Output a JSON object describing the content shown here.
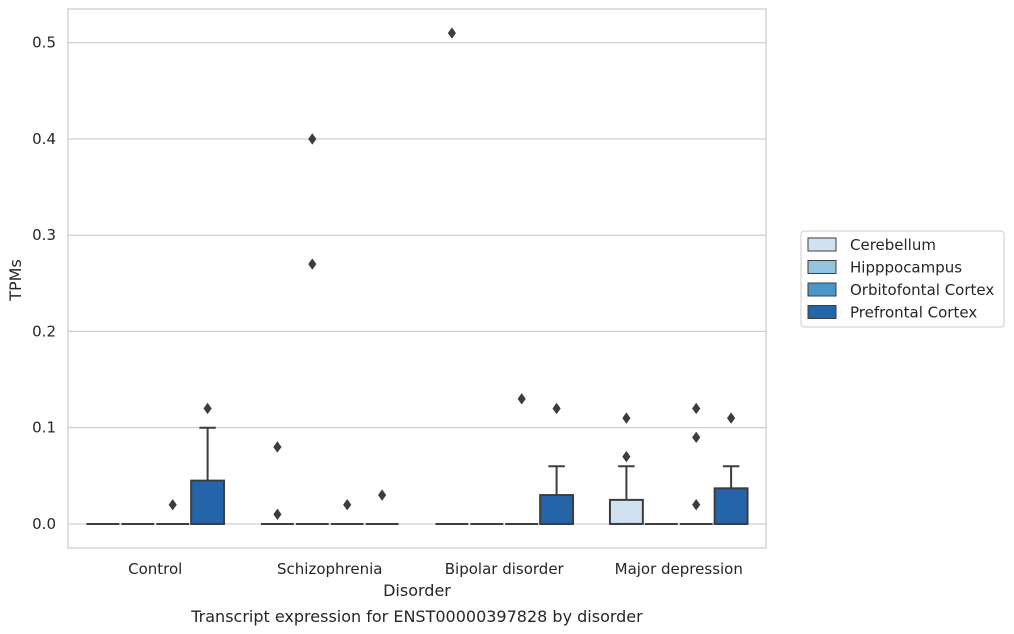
{
  "chart_data": {
    "type": "box",
    "title": "",
    "caption": "Transcript expression for ENST00000397828 by disorder",
    "xlabel": "Disorder",
    "ylabel": "TPMs",
    "categories": [
      "Control",
      "Schizophrenia",
      "Bipolar disorder",
      "Major depression"
    ],
    "ylim": [
      -0.025,
      0.535
    ],
    "yticks": [
      "0.0",
      "0.1",
      "0.2",
      "0.3",
      "0.4",
      "0.5"
    ],
    "ytick_values": [
      0.0,
      0.1,
      0.2,
      0.3,
      0.4,
      0.5
    ],
    "grid": true,
    "legend_placement": "right",
    "series": [
      {
        "name": "Cerebellum",
        "color": "#d0e1f2",
        "boxes": [
          {
            "q1": 0,
            "median": 0,
            "q3": 0,
            "whisker_low": 0,
            "whisker_high": 0,
            "outliers": []
          },
          {
            "q1": 0,
            "median": 0,
            "q3": 0,
            "whisker_low": 0,
            "whisker_high": 0,
            "outliers": [
              0.08,
              0.01
            ]
          },
          {
            "q1": 0,
            "median": 0,
            "q3": 0,
            "whisker_low": 0,
            "whisker_high": 0,
            "outliers": [
              0.51
            ]
          },
          {
            "q1": 0,
            "median": 0,
            "q3": 0.025,
            "whisker_low": 0,
            "whisker_high": 0.06,
            "outliers": [
              0.11,
              0.07
            ]
          }
        ]
      },
      {
        "name": "Hipppocampus",
        "color": "#94c4df",
        "boxes": [
          {
            "q1": 0,
            "median": 0,
            "q3": 0,
            "whisker_low": 0,
            "whisker_high": 0,
            "outliers": []
          },
          {
            "q1": 0,
            "median": 0,
            "q3": 0,
            "whisker_low": 0,
            "whisker_high": 0,
            "outliers": [
              0.4,
              0.27
            ]
          },
          {
            "q1": 0,
            "median": 0,
            "q3": 0,
            "whisker_low": 0,
            "whisker_high": 0,
            "outliers": []
          },
          {
            "q1": 0,
            "median": 0,
            "q3": 0,
            "whisker_low": 0,
            "whisker_high": 0,
            "outliers": []
          }
        ]
      },
      {
        "name": "Orbitofontal Cortex",
        "color": "#4a98c9",
        "boxes": [
          {
            "q1": 0,
            "median": 0,
            "q3": 0,
            "whisker_low": 0,
            "whisker_high": 0,
            "outliers": [
              0.02
            ]
          },
          {
            "q1": 0,
            "median": 0,
            "q3": 0,
            "whisker_low": 0,
            "whisker_high": 0,
            "outliers": [
              0.02
            ]
          },
          {
            "q1": 0,
            "median": 0,
            "q3": 0,
            "whisker_low": 0,
            "whisker_high": 0,
            "outliers": [
              0.13
            ]
          },
          {
            "q1": 0,
            "median": 0,
            "q3": 0,
            "whisker_low": 0,
            "whisker_high": 0,
            "outliers": [
              0.12,
              0.09,
              0.02
            ]
          }
        ]
      },
      {
        "name": "Prefrontal Cortex",
        "color": "#2464a8",
        "boxes": [
          {
            "q1": 0,
            "median": 0,
            "q3": 0.045,
            "whisker_low": 0,
            "whisker_high": 0.1,
            "outliers": [
              0.12
            ]
          },
          {
            "q1": 0,
            "median": 0,
            "q3": 0,
            "whisker_low": 0,
            "whisker_high": 0,
            "outliers": [
              0.03
            ]
          },
          {
            "q1": 0,
            "median": 0,
            "q3": 0.03,
            "whisker_low": 0,
            "whisker_high": 0.06,
            "outliers": [
              0.12
            ]
          },
          {
            "q1": 0,
            "median": 0,
            "q3": 0.037,
            "whisker_low": 0,
            "whisker_high": 0.06,
            "outliers": [
              0.11
            ]
          }
        ]
      }
    ]
  }
}
